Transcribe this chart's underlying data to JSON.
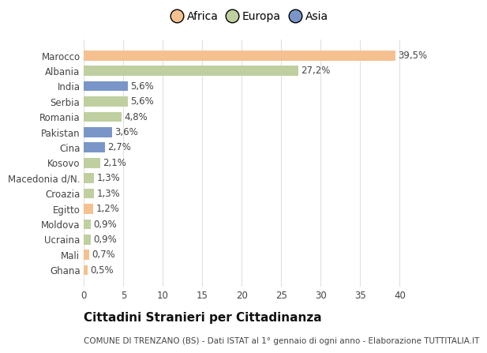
{
  "categories": [
    "Marocco",
    "Albania",
    "India",
    "Serbia",
    "Romania",
    "Pakistan",
    "Cina",
    "Kosovo",
    "Macedonia d/N.",
    "Croazia",
    "Egitto",
    "Moldova",
    "Ucraina",
    "Mali",
    "Ghana"
  ],
  "values": [
    39.5,
    27.2,
    5.6,
    5.6,
    4.8,
    3.6,
    2.7,
    2.1,
    1.3,
    1.3,
    1.2,
    0.9,
    0.9,
    0.7,
    0.5
  ],
  "labels": [
    "39,5%",
    "27,2%",
    "5,6%",
    "5,6%",
    "4,8%",
    "3,6%",
    "2,7%",
    "2,1%",
    "1,3%",
    "1,3%",
    "1,2%",
    "0,9%",
    "0,9%",
    "0,7%",
    "0,5%"
  ],
  "colors": [
    "#f5c190",
    "#bfcfa0",
    "#7a96c8",
    "#bfcfa0",
    "#bfcfa0",
    "#7a96c8",
    "#7a96c8",
    "#bfcfa0",
    "#bfcfa0",
    "#bfcfa0",
    "#f5c190",
    "#bfcfa0",
    "#bfcfa0",
    "#f5c190",
    "#f5c190"
  ],
  "continent_colors": {
    "Africa": "#f5c190",
    "Europa": "#bfcfa0",
    "Asia": "#7a96c8"
  },
  "title": "Cittadini Stranieri per Cittadinanza",
  "subtitle": "COMUNE DI TRENZANO (BS) - Dati ISTAT al 1° gennaio di ogni anno - Elaborazione TUTTITALIA.IT",
  "xlim": [
    0,
    42
  ],
  "xticks": [
    0,
    5,
    10,
    15,
    20,
    25,
    30,
    35,
    40
  ],
  "background_color": "#ffffff",
  "grid_color": "#e0e0e0",
  "bar_height": 0.65,
  "label_fontsize": 8.5,
  "title_fontsize": 11,
  "subtitle_fontsize": 7.5,
  "tick_fontsize": 8.5,
  "legend_fontsize": 10
}
